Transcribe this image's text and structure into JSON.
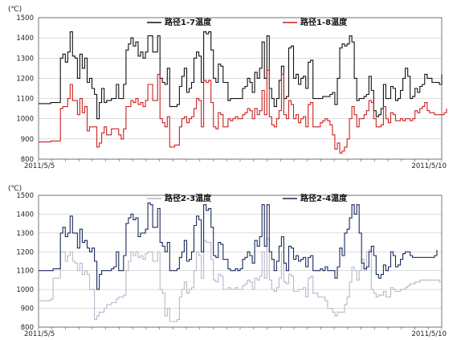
{
  "chart_data": [
    {
      "type": "line",
      "unit_label": "(℃)",
      "x_start_label": "2011/5/5",
      "x_end_label": "2011/5/10",
      "ylim": [
        800,
        1500
      ],
      "yticks": [
        800,
        900,
        1000,
        1100,
        1200,
        1300,
        1400,
        1500
      ],
      "grid": true,
      "legend": "top-center",
      "series": [
        {
          "name": "路径1-7温度",
          "color": "#111111",
          "values": [
            1075,
            1075,
            1075,
            1075,
            1075,
            1080,
            1080,
            1080,
            1080,
            1300,
            1320,
            1280,
            1330,
            1430,
            1310,
            1300,
            1200,
            1320,
            1250,
            1300,
            1180,
            1200,
            1150,
            1120,
            1000,
            1080,
            1150,
            1080,
            1090,
            1090,
            1100,
            1100,
            1170,
            1100,
            1100,
            1170,
            1340,
            1370,
            1400,
            1360,
            1380,
            1310,
            1330,
            1300,
            1330,
            1410,
            1410,
            1330,
            1330,
            1410,
            1200,
            1180,
            1170,
            1250,
            1060,
            1060,
            1060,
            1070,
            1160,
            1210,
            1250,
            1130,
            1150,
            1180,
            1300,
            1330,
            1310,
            1180,
            1430,
            1420,
            1430,
            1340,
            1200,
            1180,
            1270,
            1260,
            1180,
            1180,
            1090,
            1100,
            1100,
            1100,
            1100,
            1100,
            1150,
            1160,
            1200,
            1180,
            1130,
            1230,
            1200,
            1250,
            1380,
            1200,
            1410,
            1150,
            1100,
            1060,
            1100,
            1190,
            1260,
            1100,
            1110,
            1350,
            1360,
            1200,
            1220,
            1170,
            1200,
            1210,
            1150,
            1280,
            1290,
            1100,
            1100,
            1100,
            1100,
            1110,
            1110,
            1110,
            1120,
            1130,
            1070,
            1200,
            1350,
            1370,
            1360,
            1370,
            1410,
            1380,
            1200,
            1090,
            1100,
            1100,
            1110,
            1120,
            1210,
            1140,
            1040,
            1010,
            1020,
            1050,
            1170,
            1100,
            1100,
            1160,
            1150,
            1090,
            1100,
            1140,
            1200,
            1250,
            1210,
            1100,
            1110,
            1150,
            1130,
            1160,
            1170,
            1220,
            1200,
            1200,
            1180,
            1180,
            1180,
            1170,
            1220
          ]
        },
        {
          "name": "路径1-8温度",
          "color": "#cc2020",
          "values": [
            885,
            885,
            885,
            885,
            885,
            890,
            890,
            890,
            890,
            1050,
            1060,
            1060,
            1100,
            1170,
            1090,
            1090,
            1020,
            1100,
            1030,
            1060,
            940,
            960,
            960,
            960,
            860,
            880,
            930,
            960,
            920,
            920,
            950,
            950,
            950,
            920,
            900,
            950,
            1060,
            1060,
            1090,
            1080,
            1100,
            1070,
            1080,
            1060,
            1090,
            1170,
            1170,
            1090,
            1090,
            1220,
            1000,
            980,
            960,
            1010,
            860,
            860,
            870,
            870,
            960,
            1000,
            1010,
            980,
            1000,
            1010,
            1050,
            1100,
            1090,
            960,
            1190,
            1180,
            1190,
            1080,
            960,
            950,
            1030,
            1020,
            960,
            960,
            1000,
            990,
            1000,
            1010,
            1000,
            1000,
            1020,
            1030,
            1050,
            1040,
            1000,
            1050,
            1020,
            1040,
            1140,
            1020,
            1240,
            1010,
            970,
            960,
            1000,
            1040,
            1220,
            1020,
            1000,
            1090,
            1070,
            1000,
            1020,
            980,
            1000,
            1010,
            960,
            1070,
            1080,
            960,
            960,
            960,
            980,
            990,
            1000,
            990,
            970,
            920,
            850,
            880,
            830,
            840,
            860,
            900,
            1000,
            1060,
            1020,
            960,
            1000,
            1000,
            1020,
            1040,
            1090,
            1080,
            1000,
            960,
            960,
            970,
            1060,
            1000,
            980,
            1030,
            1020,
            990,
            990,
            1000,
            990,
            1000,
            1000,
            990,
            1000,
            1040,
            1030,
            1050,
            1060,
            1080,
            1040,
            1030,
            1030,
            1020,
            1020,
            1020,
            1020,
            1030,
            1050
          ]
        }
      ]
    },
    {
      "type": "line",
      "unit_label": "(℃)",
      "x_start_label": "2011/5/5",
      "x_end_label": "2011/5/10",
      "ylim": [
        800,
        1500
      ],
      "yticks": [
        800,
        900,
        1000,
        1100,
        1200,
        1300,
        1400,
        1500
      ],
      "grid": true,
      "legend": "top-center",
      "series": [
        {
          "name": "路径2-3温度",
          "color": "#b8b8cc",
          "values": [
            940,
            940,
            940,
            940,
            940,
            950,
            1060,
            1060,
            1060,
            1200,
            1200,
            1150,
            1180,
            1200,
            1150,
            1140,
            1100,
            1140,
            1080,
            1100,
            1080,
            1000,
            1000,
            840,
            860,
            880,
            880,
            900,
            920,
            920,
            930,
            930,
            950,
            960,
            960,
            970,
            1100,
            1150,
            1200,
            1180,
            1200,
            1170,
            1180,
            1160,
            1190,
            1200,
            1200,
            1150,
            1150,
            1200,
            1000,
            980,
            860,
            900,
            830,
            830,
            830,
            840,
            960,
            1000,
            1040,
            980,
            1000,
            1010,
            1100,
            1200,
            1180,
            1060,
            1260,
            1250,
            1250,
            1160,
            1050,
            1040,
            1080,
            1070,
            1000,
            1000,
            1010,
            1000,
            1000,
            1010,
            1000,
            1000,
            1020,
            1030,
            1050,
            1040,
            1000,
            1060,
            1050,
            1070,
            1200,
            1060,
            1270,
            1050,
            1000,
            990,
            1010,
            1060,
            1200,
            1040,
            1030,
            1080,
            1070,
            990,
            990,
            1000,
            1000,
            1010,
            960,
            1060,
            1070,
            980,
            980,
            960,
            960,
            960,
            940,
            900,
            900,
            880,
            860,
            880,
            880,
            880,
            920,
            960,
            1040,
            1120,
            1100,
            1050,
            1100,
            1160,
            1100,
            1200,
            1210,
            1000,
            980,
            960,
            970,
            970,
            990,
            960,
            960,
            1010,
            1000,
            990,
            990,
            1000,
            1000,
            1010,
            1020,
            1030,
            1030,
            1040,
            1040,
            1050,
            1050,
            1050,
            1050,
            1050,
            1050,
            1050,
            1050,
            1040,
            1040
          ]
        },
        {
          "name": "路径2-4温度",
          "color": "#1a2a5c",
          "values": [
            1100,
            1100,
            1100,
            1100,
            1100,
            1100,
            1110,
            1110,
            1110,
            1300,
            1330,
            1280,
            1300,
            1390,
            1300,
            1300,
            1220,
            1320,
            1250,
            1260,
            1220,
            1200,
            1220,
            1150,
            1000,
            1080,
            1100,
            1100,
            1100,
            1100,
            1110,
            1120,
            1200,
            1100,
            1100,
            1180,
            1350,
            1380,
            1400,
            1370,
            1380,
            1280,
            1300,
            1300,
            1320,
            1460,
            1450,
            1330,
            1330,
            1430,
            1250,
            1230,
            1200,
            1250,
            1100,
            1100,
            1100,
            1110,
            1170,
            1200,
            1260,
            1150,
            1160,
            1200,
            1340,
            1390,
            1370,
            1200,
            1450,
            1420,
            1430,
            1330,
            1180,
            1170,
            1250,
            1240,
            1160,
            1160,
            1110,
            1100,
            1100,
            1110,
            1100,
            1110,
            1160,
            1170,
            1200,
            1180,
            1140,
            1260,
            1230,
            1280,
            1450,
            1230,
            1450,
            1200,
            1160,
            1100,
            1150,
            1230,
            1280,
            1140,
            1100,
            1230,
            1220,
            1160,
            1180,
            1150,
            1160,
            1170,
            1120,
            1170,
            1180,
            1100,
            1100,
            1100,
            1110,
            1100,
            1120,
            1100,
            1100,
            1100,
            1060,
            1120,
            1220,
            1180,
            1300,
            1320,
            1380,
            1450,
            1400,
            1450,
            1300,
            1140,
            1110,
            1120,
            1200,
            1230,
            1180,
            1080,
            1060,
            1080,
            1130,
            1100,
            1120,
            1200,
            1180,
            1120,
            1130,
            1160,
            1190,
            1200,
            1200,
            1180,
            1170,
            1170,
            1170,
            1170,
            1170,
            1170,
            1170,
            1170,
            1170,
            1180,
            1210
          ]
        }
      ]
    }
  ]
}
